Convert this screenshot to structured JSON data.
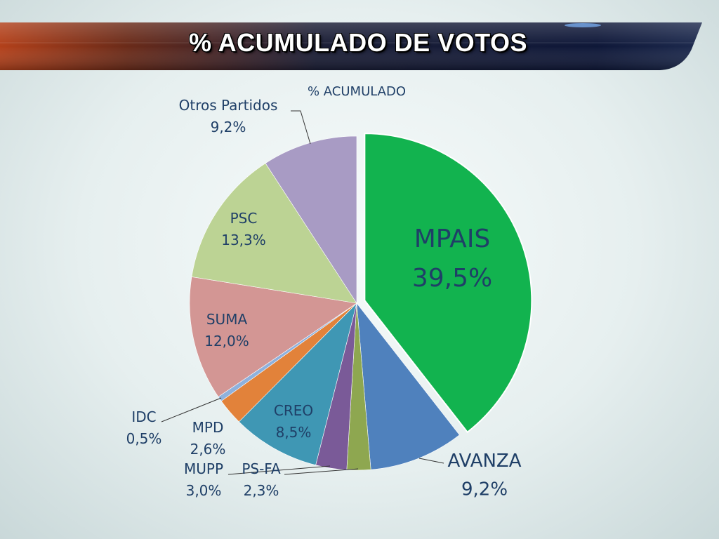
{
  "page": {
    "title": "% ACUMULADO DE VOTOS"
  },
  "colors": {
    "banner_dark": "#141c3a",
    "banner_accent": "#c0501a",
    "label_text": "#1f3f67"
  },
  "chart_data": {
    "type": "pie",
    "title": "% ACUMULADO",
    "unit": "%",
    "slices": [
      {
        "label": "MPAIS",
        "value": 39.5,
        "value_text": "39,5%",
        "color": "#12b34f",
        "exploded": true
      },
      {
        "label": "AVANZA",
        "value": 9.2,
        "value_text": "9,2%",
        "color": "#4f81bd"
      },
      {
        "label": "PS-FA",
        "value": 2.3,
        "value_text": "2,3%",
        "color": "#8ea750"
      },
      {
        "label": "MUPP",
        "value": 3.0,
        "value_text": "3,0%",
        "color": "#7a5a98"
      },
      {
        "label": "CREO",
        "value": 8.5,
        "value_text": "8,5%",
        "color": "#3f97b4"
      },
      {
        "label": "MPD",
        "value": 2.6,
        "value_text": "2,6%",
        "color": "#e2823a"
      },
      {
        "label": "IDC",
        "value": 0.5,
        "value_text": "0,5%",
        "color": "#8eb1dd"
      },
      {
        "label": "SUMA",
        "value": 12.0,
        "value_text": "12,0%",
        "color": "#d39694"
      },
      {
        "label": "PSC",
        "value": 13.3,
        "value_text": "13,3%",
        "color": "#bcd394"
      },
      {
        "label": "Otros Partidos",
        "value": 9.2,
        "value_text": "9,2%",
        "color": "#a89bc4"
      }
    ]
  }
}
